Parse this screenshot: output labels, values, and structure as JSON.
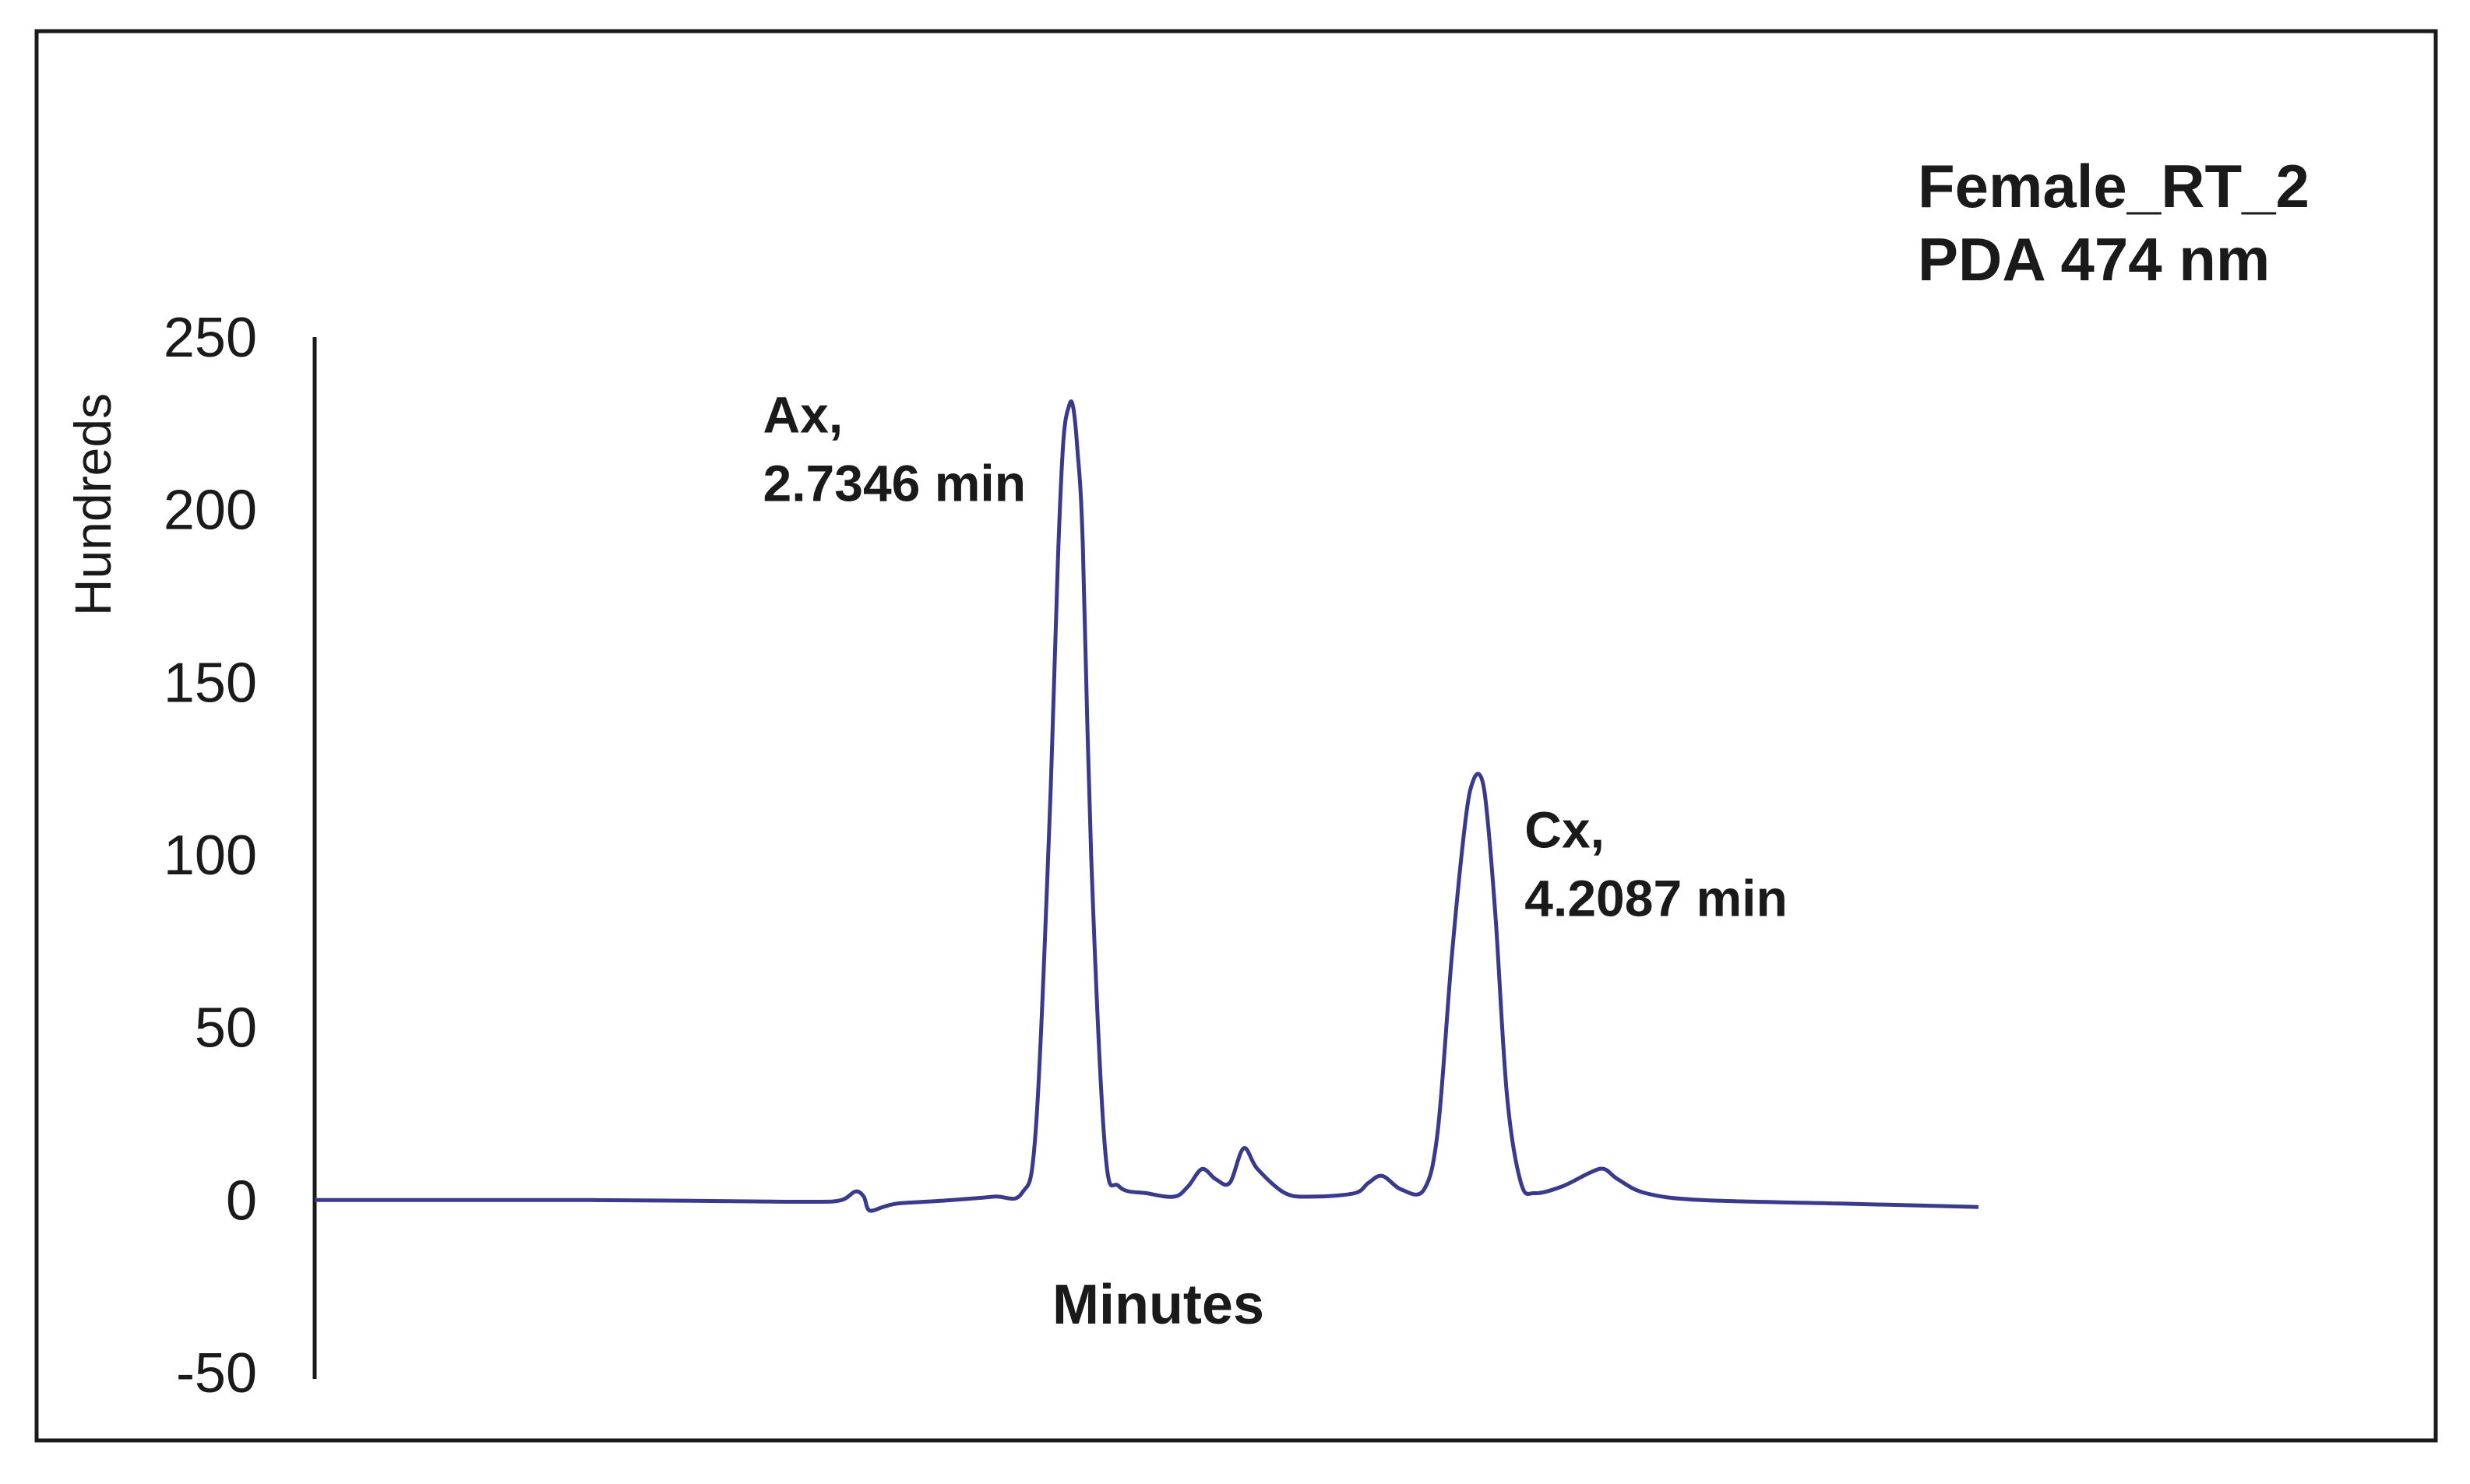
{
  "chart_data": {
    "type": "line",
    "title": "",
    "info_lines": [
      "Female_RT_2",
      "PDA 474 nm"
    ],
    "xlabel": "Minutes",
    "ylabel": "Hundreds",
    "ylim": [
      -50,
      250
    ],
    "yticks": [
      250,
      200,
      150,
      100,
      50,
      0,
      -50
    ],
    "xlim": [
      0,
      6
    ],
    "x_ticks_shown": false,
    "grid": false,
    "legend": "none",
    "line_color": "#3a3a8c",
    "series": [
      {
        "x": [
          0,
          0.5,
          1.0,
          1.5,
          1.8,
          1.9,
          1.95,
          1.98,
          2.0,
          2.05,
          2.1,
          2.2,
          2.3,
          2.45,
          2.55,
          2.6,
          2.65,
          2.68,
          2.7,
          2.72,
          2.7346,
          2.75,
          2.77,
          2.8,
          2.85,
          2.9,
          3.0,
          3.1,
          3.15,
          3.2,
          3.25,
          3.3,
          3.35,
          3.4,
          3.5,
          3.6,
          3.75,
          3.8,
          3.85,
          3.92,
          4.0,
          4.05,
          4.1,
          4.15,
          4.18,
          4.2087,
          4.23,
          4.26,
          4.3,
          4.35,
          4.4,
          4.5,
          4.6,
          4.65,
          4.7,
          4.8,
          5.0,
          5.5,
          6.0
        ],
        "y": [
          0,
          0,
          0,
          -0.3,
          -0.5,
          0,
          2.5,
          1.0,
          -3,
          -2,
          -1,
          -0.5,
          0,
          1,
          2,
          20,
          110,
          185,
          220,
          230,
          230,
          218,
          190,
          100,
          15,
          4,
          2,
          1,
          4,
          9,
          6,
          5,
          15,
          9,
          2,
          1,
          2,
          5,
          7,
          3,
          3,
          20,
          70,
          110,
          122,
          122,
          110,
          80,
          30,
          5,
          2,
          4,
          8,
          9,
          6,
          2,
          0,
          -1,
          -2
        ]
      }
    ],
    "annotations": [
      {
        "lines": [
          "Ax,",
          "2.7346 min"
        ],
        "x": 2.7346,
        "y": 230
      },
      {
        "lines": [
          "Cx,",
          "4.2087 min"
        ],
        "x": 4.2087,
        "y": 122
      }
    ]
  }
}
